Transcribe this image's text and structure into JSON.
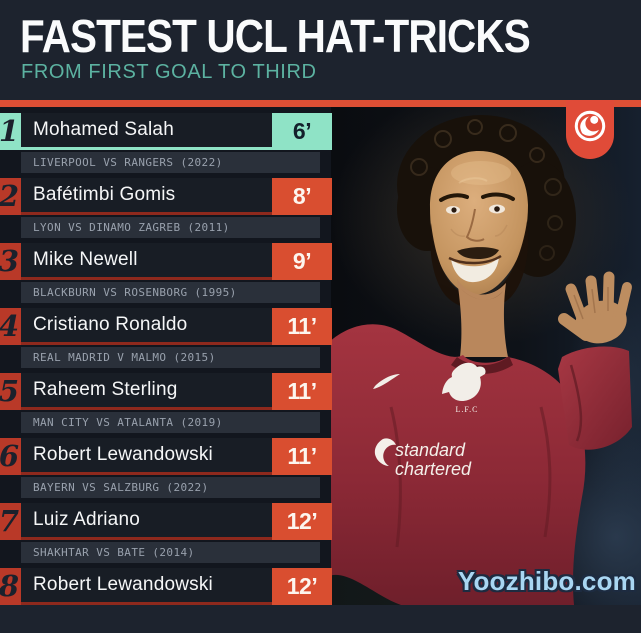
{
  "header": {
    "title": "FASTEST UCL HAT-TRICKS",
    "subtitle": "FROM FIRST GOAL TO THIRD"
  },
  "list": {
    "rows": [
      {
        "rank": "1",
        "name": "Mohamed Salah",
        "time": "6’",
        "match": "LIVERPOOL VS RANGERS (2022)",
        "highlight": true
      },
      {
        "rank": "2",
        "name": "Bafétimbi Gomis",
        "time": "8’",
        "match": "LYON VS DINAMO ZAGREB (2011)"
      },
      {
        "rank": "3",
        "name": "Mike Newell",
        "time": "9’",
        "match": "BLACKBURN VS ROSENBORG (1995)"
      },
      {
        "rank": "4",
        "name": "Cristiano Ronaldo",
        "time": "11’",
        "match": "REAL MADRID V MALMO (2015)"
      },
      {
        "rank": "5",
        "name": "Raheem Sterling",
        "time": "11’",
        "match": "MAN CITY VS ATALANTA (2019)"
      },
      {
        "rank": "6",
        "name": "Robert Lewandowski",
        "time": "11’",
        "match": "BAYERN VS SALZBURG (2022)"
      },
      {
        "rank": "7",
        "name": "Luiz Adriano",
        "time": "12’",
        "match": "SHAKHTAR VS BATE (2014)"
      },
      {
        "rank": "8",
        "name": "Robert Lewandowski",
        "time": "12’",
        "match": ""
      }
    ]
  },
  "photo": {
    "subject": "Mohamed Salah celebrating in Liverpool shirt",
    "sponsor_line1": "standard",
    "sponsor_line2": "chartered",
    "crest_label": "L.F.C",
    "watermark": "Yoozhibo.com"
  },
  "icons": {
    "publisher_logo": "yin-yang-swirl",
    "nike_swoosh": "nike-swoosh",
    "club_crest": "liver-bird-crest"
  },
  "colors": {
    "background": "#1d232e",
    "accent_orange": "#dd4f35",
    "rank_red": "#b93928",
    "accent_teal": "#8fe3c6",
    "subtitle_teal": "#5cb2a1",
    "name_bar_bg": "#181d25",
    "sub_row_bg": "#2a303a",
    "watermark_blue": "#a9d6f2",
    "jersey_red": "#9c2f3a"
  },
  "chart_data": {
    "type": "table",
    "title": "FASTEST UCL HAT-TRICKS",
    "subtitle": "FROM FIRST GOAL TO THIRD",
    "columns": [
      "rank",
      "player",
      "minutes_first_goal_to_third",
      "match"
    ],
    "rows": [
      [
        1,
        "Mohamed Salah",
        6,
        "LIVERPOOL VS RANGERS (2022)"
      ],
      [
        2,
        "Bafétimbi Gomis",
        8,
        "LYON VS DINAMO ZAGREB (2011)"
      ],
      [
        3,
        "Mike Newell",
        9,
        "BLACKBURN VS ROSENBORG (1995)"
      ],
      [
        4,
        "Cristiano Ronaldo",
        11,
        "REAL MADRID V MALMO (2015)"
      ],
      [
        5,
        "Raheem Sterling",
        11,
        "MAN CITY VS ATALANTA (2019)"
      ],
      [
        6,
        "Robert Lewandowski",
        11,
        "BAYERN VS SALZBURG (2022)"
      ],
      [
        7,
        "Luiz Adriano",
        12,
        "SHAKHTAR VS BATE (2014)"
      ],
      [
        8,
        "Robert Lewandowski",
        12,
        ""
      ]
    ]
  }
}
